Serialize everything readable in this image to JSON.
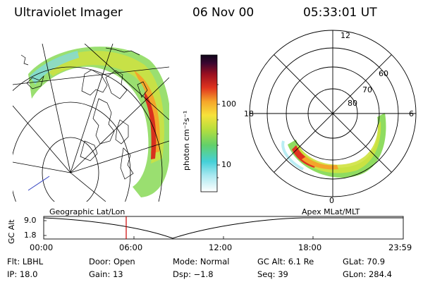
{
  "header": {
    "instrument": "Ultraviolet Imager",
    "date": "06 Nov 00",
    "time": "05:33:01 UT"
  },
  "colorbar": {
    "label": "photon cm⁻²s⁻¹",
    "ticks": [
      "100",
      "10"
    ],
    "scale": "log"
  },
  "geo_panel": {
    "caption": "Geographic Lat/Lon"
  },
  "polar_panel": {
    "caption": "Apex MLat/MLT",
    "mlt_labels": {
      "top": "12",
      "left": "18",
      "right": "6",
      "bottom": "0"
    },
    "lat_labels": [
      "80",
      "70",
      "60"
    ]
  },
  "altitude_plot": {
    "ylabel": "GC Alt",
    "y_ticks": [
      "9.0",
      "1.8"
    ],
    "x_ticks": [
      "00:00",
      "06:00",
      "12:00",
      "18:00",
      "23:59"
    ],
    "marker_time": "05:33"
  },
  "info": {
    "filter": "Flt: LBHL",
    "ip": "IP: 18.0",
    "door": "Door: Open",
    "gain": "Gain: 13",
    "mode": "Mode: Normal",
    "dsp": "Dsp:  −1.8",
    "gc_alt": "GC Alt: 6.1 Re",
    "seq": "Seq: 39",
    "glat": "GLat:  70.9",
    "glon": "GLon: 284.4"
  },
  "colors": {
    "marker": "#cc0000",
    "aurora_palette": [
      "#a8e8f0",
      "#44d0d8",
      "#7ed35a",
      "#c8e13a",
      "#f7e23b",
      "#f6a52a",
      "#e0341f",
      "#9a0f20",
      "#3a0630"
    ]
  }
}
